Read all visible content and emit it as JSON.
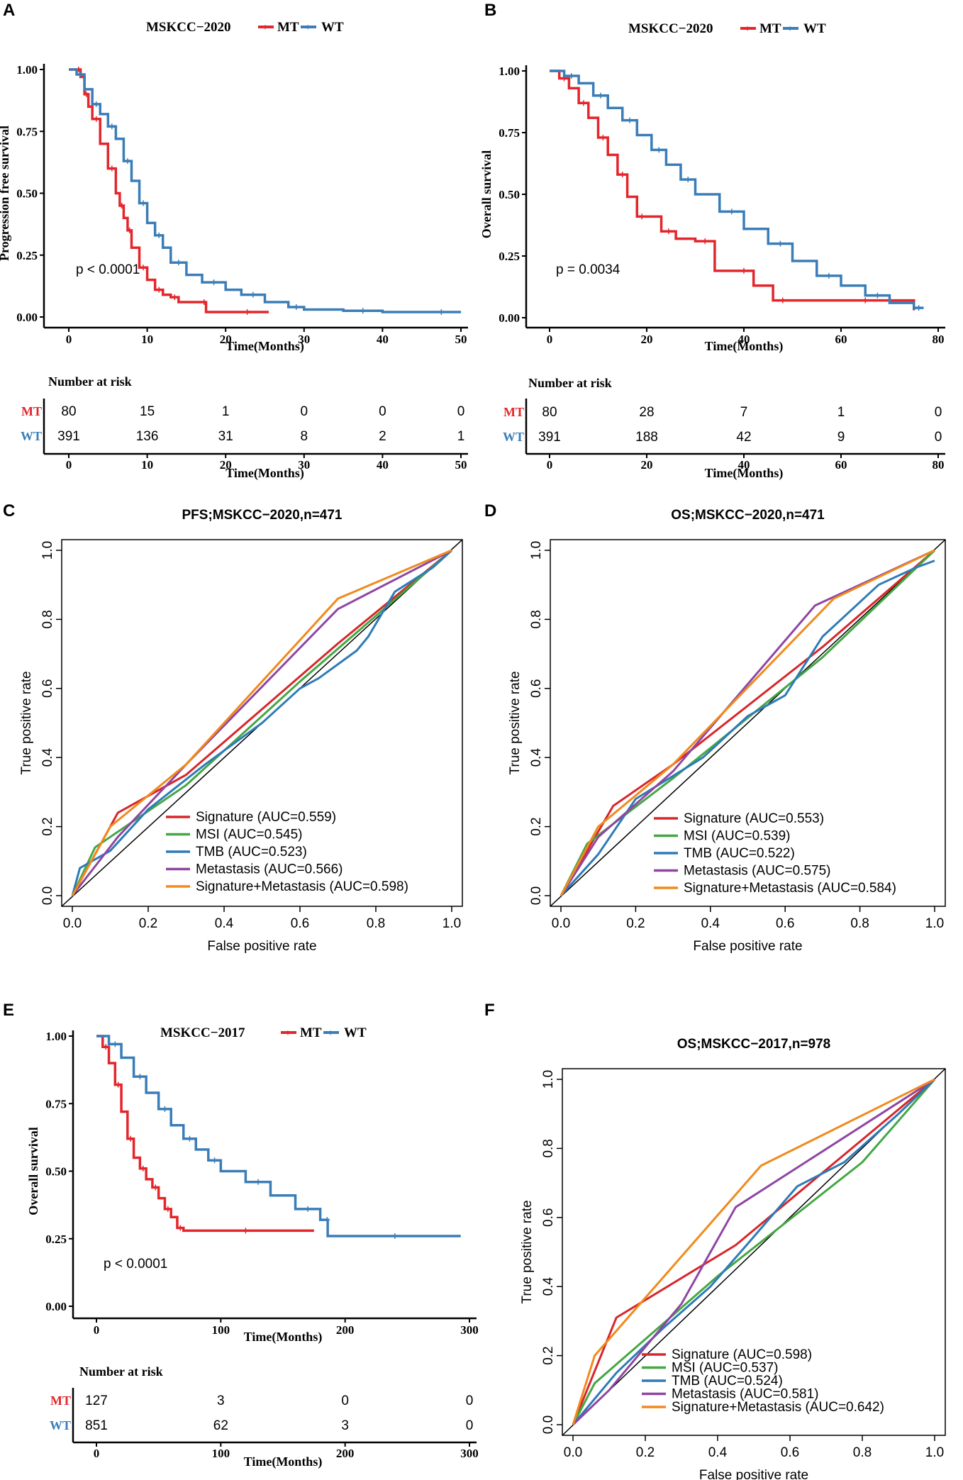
{
  "colors": {
    "mt": "#e3262b",
    "wt": "#3a7db8",
    "signature": "#d7262b",
    "msi": "#44a743",
    "tmb": "#2e7bb7",
    "metastasis": "#8f46a3",
    "combined": "#f08a1d"
  },
  "chart_data": [
    {
      "panel": "A",
      "type": "line",
      "title": "MSKCC−2020",
      "legend": [
        "MT",
        "WT"
      ],
      "xlabel": "Time(Months)",
      "ylabel": "Progression free survival",
      "xlim": [
        0,
        50
      ],
      "ylim": [
        0,
        1
      ],
      "xticks": [
        "0",
        "10",
        "20",
        "30",
        "40",
        "50"
      ],
      "yticks": [
        "0.00",
        "0.25",
        "0.50",
        "0.75",
        "1.00"
      ],
      "pvalue": "p < 0.0001",
      "series": [
        {
          "name": "MT",
          "x": [
            0,
            1,
            1.5,
            2,
            2.5,
            3,
            4,
            5,
            6,
            6.5,
            7,
            7.5,
            8,
            9,
            10,
            11,
            12,
            13,
            14,
            17,
            17.5,
            20,
            25.5
          ],
          "y": [
            1,
            1,
            0.97,
            0.9,
            0.85,
            0.8,
            0.7,
            0.6,
            0.5,
            0.45,
            0.4,
            0.35,
            0.28,
            0.2,
            0.15,
            0.11,
            0.09,
            0.08,
            0.06,
            0.06,
            0.02,
            0.02,
            0.02
          ]
        },
        {
          "name": "WT",
          "x": [
            0,
            1,
            2,
            3,
            4,
            5,
            6,
            7,
            8,
            9,
            10,
            11,
            12,
            13,
            15,
            17,
            20,
            22,
            25,
            28,
            30,
            35,
            40,
            45,
            50
          ],
          "y": [
            1,
            0.98,
            0.92,
            0.86,
            0.82,
            0.77,
            0.72,
            0.63,
            0.55,
            0.46,
            0.38,
            0.33,
            0.28,
            0.22,
            0.17,
            0.14,
            0.11,
            0.09,
            0.06,
            0.04,
            0.03,
            0.025,
            0.02,
            0.02,
            0.02
          ]
        }
      ],
      "risk": {
        "title": "Number at risk",
        "rows": [
          {
            "name": "MT",
            "values": [
              "80",
              "15",
              "1",
              "0",
              "0",
              "0"
            ]
          },
          {
            "name": "WT",
            "values": [
              "391",
              "136",
              "31",
              "8",
              "2",
              "1"
            ]
          }
        ]
      }
    },
    {
      "panel": "B",
      "type": "line",
      "title": "MSKCC−2020",
      "legend": [
        "MT",
        "WT"
      ],
      "xlabel": "Time(Months)",
      "ylabel": "Overall survival",
      "xlim": [
        0,
        80
      ],
      "ylim": [
        0,
        1
      ],
      "xticks": [
        "0",
        "20",
        "40",
        "60",
        "80"
      ],
      "yticks": [
        "0.00",
        "0.25",
        "0.50",
        "0.75",
        "1.00"
      ],
      "pvalue": "p = 0.0034",
      "series": [
        {
          "name": "MT",
          "x": [
            0,
            2,
            4,
            6,
            8,
            10,
            12,
            14,
            16,
            18,
            20,
            23,
            26,
            30,
            34,
            38,
            42,
            46,
            50,
            60,
            70,
            75
          ],
          "y": [
            1,
            0.97,
            0.93,
            0.87,
            0.81,
            0.73,
            0.66,
            0.58,
            0.49,
            0.41,
            0.41,
            0.35,
            0.32,
            0.31,
            0.19,
            0.19,
            0.13,
            0.07,
            0.07,
            0.07,
            0.07,
            0.03
          ]
        },
        {
          "name": "WT",
          "x": [
            0,
            3,
            6,
            9,
            12,
            15,
            18,
            21,
            24,
            27,
            30,
            35,
            40,
            45,
            50,
            55,
            60,
            65,
            70,
            75,
            77
          ],
          "y": [
            1,
            0.98,
            0.95,
            0.9,
            0.85,
            0.8,
            0.74,
            0.68,
            0.62,
            0.56,
            0.5,
            0.43,
            0.36,
            0.3,
            0.23,
            0.17,
            0.13,
            0.09,
            0.06,
            0.04,
            0.04
          ]
        }
      ],
      "risk": {
        "title": "Number at risk",
        "rows": [
          {
            "name": "MT",
            "values": [
              "80",
              "28",
              "7",
              "1",
              "0"
            ]
          },
          {
            "name": "WT",
            "values": [
              "391",
              "188",
              "42",
              "9",
              "0"
            ]
          }
        ]
      }
    },
    {
      "panel": "C",
      "type": "line",
      "title": "PFS;MSKCC−2020,n=471",
      "xlabel": "False positive rate",
      "ylabel": "True positive rate",
      "xlim": [
        0,
        1
      ],
      "ylim": [
        0,
        1
      ],
      "xticks": [
        "0.0",
        "0.2",
        "0.4",
        "0.6",
        "0.8",
        "1.0"
      ],
      "yticks": [
        "0.0",
        "0.2",
        "0.4",
        "0.6",
        "0.8",
        "1.0"
      ],
      "series": [
        {
          "name": "Signature (AUC=0.559)",
          "key": "signature",
          "x": [
            0,
            0.12,
            0.3,
            0.7,
            1.0
          ],
          "y": [
            0,
            0.24,
            0.35,
            0.73,
            1.0
          ]
        },
        {
          "name": "MSI (AUC=0.545)",
          "key": "msi",
          "x": [
            0,
            0.06,
            0.3,
            0.6,
            1.0
          ],
          "y": [
            0,
            0.14,
            0.32,
            0.62,
            1.0
          ]
        },
        {
          "name": "TMB (AUC=0.523)",
          "key": "tmb",
          "x": [
            0,
            0.02,
            0.1,
            0.2,
            0.35,
            0.5,
            0.6,
            0.65,
            0.75,
            0.78,
            0.85,
            0.95,
            1.0
          ],
          "y": [
            0,
            0.08,
            0.13,
            0.25,
            0.38,
            0.5,
            0.6,
            0.63,
            0.71,
            0.75,
            0.88,
            0.95,
            1.0
          ]
        },
        {
          "name": "Metastasis (AUC=0.566)",
          "key": "metastasis",
          "x": [
            0,
            0.12,
            0.3,
            0.7,
            1.0
          ],
          "y": [
            0,
            0.17,
            0.38,
            0.83,
            1.0
          ]
        },
        {
          "name": "Signature+Metastasis (AUC=0.598)",
          "key": "combined",
          "x": [
            0,
            0.1,
            0.3,
            0.7,
            1.0
          ],
          "y": [
            0,
            0.2,
            0.38,
            0.86,
            1.0
          ]
        }
      ]
    },
    {
      "panel": "D",
      "type": "line",
      "title": "OS;MSKCC−2020,n=471",
      "xlabel": "False positive rate",
      "ylabel": "True positive rate",
      "xlim": [
        0,
        1
      ],
      "ylim": [
        0,
        1
      ],
      "xticks": [
        "0.0",
        "0.2",
        "0.4",
        "0.6",
        "0.8",
        "1.0"
      ],
      "yticks": [
        "0.0",
        "0.2",
        "0.4",
        "0.6",
        "0.8",
        "1.0"
      ],
      "series": [
        {
          "name": "Signature (AUC=0.553)",
          "key": "signature",
          "x": [
            0,
            0.14,
            0.3,
            0.7,
            1.0
          ],
          "y": [
            0,
            0.26,
            0.38,
            0.72,
            1.0
          ]
        },
        {
          "name": "MSI (AUC=0.539)",
          "key": "msi",
          "x": [
            0,
            0.07,
            0.3,
            0.7,
            1.0
          ],
          "y": [
            0,
            0.15,
            0.34,
            0.69,
            1.0
          ]
        },
        {
          "name": "TMB (AUC=0.522)",
          "key": "tmb",
          "x": [
            0,
            0.1,
            0.2,
            0.38,
            0.5,
            0.6,
            0.7,
            0.85,
            0.95,
            1.0
          ],
          "y": [
            0,
            0.12,
            0.28,
            0.4,
            0.52,
            0.58,
            0.75,
            0.9,
            0.95,
            0.97
          ]
        },
        {
          "name": "Metastasis (AUC=0.575)",
          "key": "metastasis",
          "x": [
            0,
            0.1,
            0.3,
            0.68,
            1.0
          ],
          "y": [
            0,
            0.17,
            0.36,
            0.84,
            1.0
          ]
        },
        {
          "name": "Signature+Metastasis (AUC=0.584)",
          "key": "combined",
          "x": [
            0,
            0.1,
            0.3,
            0.73,
            1.0
          ],
          "y": [
            0,
            0.2,
            0.38,
            0.86,
            1.0
          ]
        }
      ]
    },
    {
      "panel": "E",
      "type": "line",
      "title": "MSKCC−2017",
      "legend": [
        "MT",
        "WT"
      ],
      "xlabel": "Time(Months)",
      "ylabel": "Overall survival",
      "xlim": [
        0,
        300
      ],
      "ylim": [
        0,
        1
      ],
      "xticks": [
        "0",
        "100",
        "200",
        "300"
      ],
      "yticks": [
        "0.00",
        "0.25",
        "0.50",
        "0.75",
        "1.00"
      ],
      "pvalue": "p < 0.0001",
      "series": [
        {
          "name": "MT",
          "x": [
            0,
            5,
            10,
            15,
            20,
            25,
            30,
            35,
            40,
            45,
            50,
            55,
            60,
            65,
            70,
            100,
            140,
            175
          ],
          "y": [
            1,
            0.96,
            0.9,
            0.82,
            0.72,
            0.62,
            0.55,
            0.51,
            0.47,
            0.44,
            0.4,
            0.36,
            0.33,
            0.29,
            0.28,
            0.28,
            0.28,
            0.28
          ]
        },
        {
          "name": "WT",
          "x": [
            0,
            10,
            20,
            30,
            40,
            50,
            60,
            70,
            80,
            90,
            100,
            120,
            140,
            160,
            180,
            185,
            186,
            220,
            260,
            293
          ],
          "y": [
            1,
            0.97,
            0.92,
            0.85,
            0.79,
            0.73,
            0.67,
            0.62,
            0.58,
            0.54,
            0.5,
            0.46,
            0.41,
            0.36,
            0.32,
            0.32,
            0.26,
            0.26,
            0.26,
            0.26
          ]
        }
      ],
      "risk": {
        "title": "Number at risk",
        "rows": [
          {
            "name": "MT",
            "values": [
              "127",
              "3",
              "0",
              "0"
            ]
          },
          {
            "name": "WT",
            "values": [
              "851",
              "62",
              "3",
              "0"
            ]
          }
        ]
      }
    },
    {
      "panel": "F",
      "type": "line",
      "title": "OS;MSKCC−2017,n=978",
      "xlabel": "False positive rate",
      "ylabel": "True positive rate",
      "xlim": [
        0,
        1
      ],
      "ylim": [
        0,
        1
      ],
      "xticks": [
        "0.0",
        "0.2",
        "0.4",
        "0.6",
        "0.8",
        "1.0"
      ],
      "yticks": [
        "0.0",
        "0.2",
        "0.4",
        "0.6",
        "0.8",
        "1.0"
      ],
      "series": [
        {
          "name": "Signature (AUC=0.598)",
          "key": "signature",
          "x": [
            0,
            0.12,
            0.45,
            1.0
          ],
          "y": [
            0,
            0.31,
            0.52,
            1.0
          ]
        },
        {
          "name": "MSI (AUC=0.537)",
          "key": "msi",
          "x": [
            0,
            0.06,
            0.4,
            0.8,
            1.0
          ],
          "y": [
            0,
            0.12,
            0.43,
            0.76,
            1.0
          ]
        },
        {
          "name": "TMB (AUC=0.524)",
          "key": "tmb",
          "x": [
            0,
            0.12,
            0.25,
            0.38,
            0.48,
            0.62,
            0.75,
            0.9,
            1.0
          ],
          "y": [
            0,
            0.15,
            0.28,
            0.4,
            0.52,
            0.69,
            0.76,
            0.9,
            1.0
          ]
        },
        {
          "name": "Metastasis (AUC=0.581)",
          "key": "metastasis",
          "x": [
            0,
            0.1,
            0.3,
            0.45,
            1.0
          ],
          "y": [
            0,
            0.1,
            0.35,
            0.63,
            1.0
          ]
        },
        {
          "name": "Signature+Metastasis (AUC=0.642)",
          "key": "combined",
          "x": [
            0,
            0.06,
            0.52,
            1.0
          ],
          "y": [
            0,
            0.2,
            0.75,
            1.0
          ]
        }
      ]
    }
  ]
}
